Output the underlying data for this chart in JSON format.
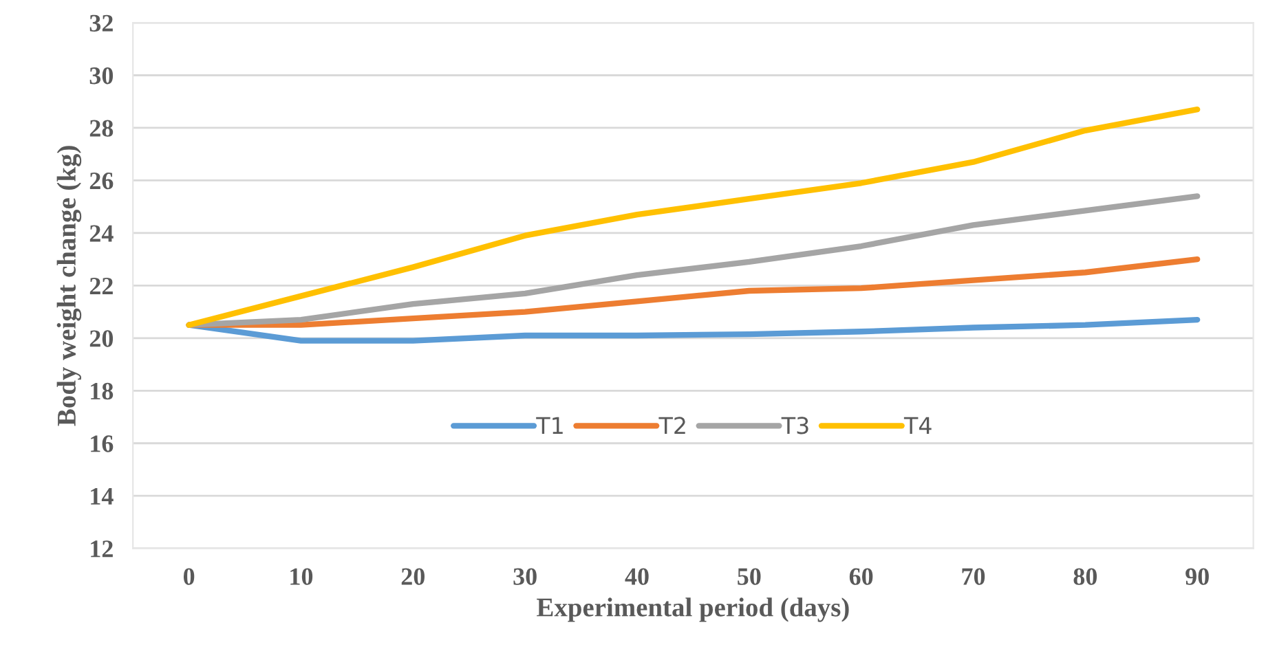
{
  "chart_data": {
    "type": "line",
    "xlabel": "Experimental period (days)",
    "ylabel": "Body weight change (kg)",
    "categories": [
      "0",
      "10",
      "20",
      "30",
      "40",
      "50",
      "60",
      "70",
      "80",
      "90"
    ],
    "series": [
      {
        "name": "T1",
        "color": "#5b9bd5",
        "values": [
          20.5,
          19.9,
          19.9,
          20.1,
          20.1,
          20.15,
          20.25,
          20.4,
          20.5,
          20.7
        ]
      },
      {
        "name": "T2",
        "color": "#ed7d31",
        "values": [
          20.5,
          20.5,
          20.75,
          21.0,
          21.4,
          21.8,
          21.9,
          22.2,
          22.5,
          23.0
        ]
      },
      {
        "name": "T3",
        "color": "#a5a5a5",
        "values": [
          20.5,
          20.7,
          21.3,
          21.7,
          22.4,
          22.9,
          23.5,
          24.3,
          24.85,
          25.4
        ]
      },
      {
        "name": "T4",
        "color": "#ffc000",
        "values": [
          20.5,
          21.6,
          22.7,
          23.9,
          24.7,
          25.3,
          25.9,
          26.7,
          27.9,
          28.7
        ]
      }
    ],
    "ylim": [
      12,
      32
    ],
    "yticks": [
      12,
      14,
      16,
      18,
      20,
      22,
      24,
      26,
      28,
      30,
      32
    ],
    "grid": "y",
    "legend": "center",
    "marker": "none",
    "line_style": "solid"
  }
}
